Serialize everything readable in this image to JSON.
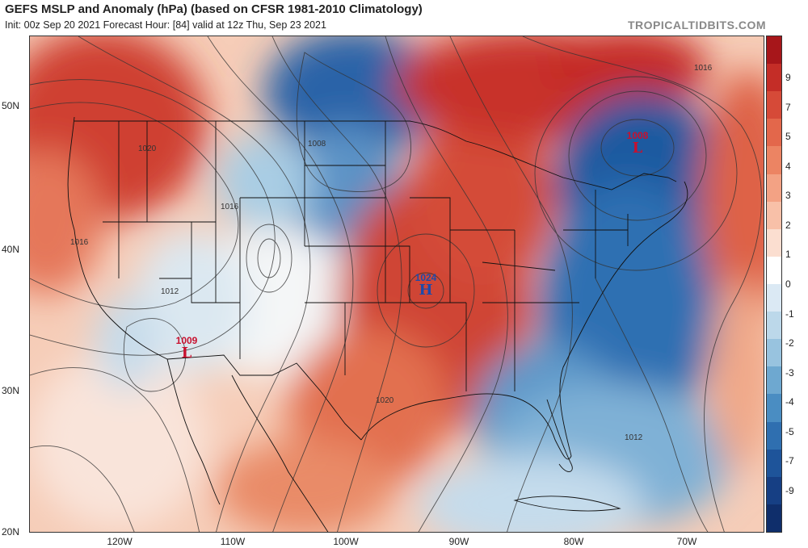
{
  "header": {
    "title": "GEFS MSLP and Anomaly (hPa) (based on CFSR 1981-2010 Climatology)",
    "subtitle": "Init: 00z Sep 20 2021   Forecast Hour: [84]   valid at 12z Thu, Sep 23 2021",
    "brand": "TROPICALTIDBITS.COM"
  },
  "axes": {
    "lat_labels": [
      "50N",
      "40N",
      "30N",
      "20N"
    ],
    "lon_labels": [
      "120W",
      "110W",
      "100W",
      "90W",
      "80W",
      "70W"
    ]
  },
  "colorbar": {
    "labels": [
      "9",
      "7",
      "5",
      "4",
      "3",
      "2",
      "1",
      "0",
      "-1",
      "-2",
      "-3",
      "-4",
      "-5",
      "-7",
      "-9"
    ],
    "colors": [
      "#a7161a",
      "#c42d27",
      "#d64a38",
      "#e3674b",
      "#ec8463",
      "#f3a284",
      "#f8c0a8",
      "#fbded0",
      "#ffffff",
      "#dbe9f4",
      "#bcd8ea",
      "#98c3df",
      "#6ea8d0",
      "#4a8dc2",
      "#2f6fb0",
      "#1e549a",
      "#163f84",
      "#0f2e6b"
    ]
  },
  "pressure_systems": [
    {
      "type": "L",
      "value": "1008",
      "color": "#c8102e"
    },
    {
      "type": "H",
      "value": "1024",
      "color": "#1f4aa8"
    },
    {
      "type": "L",
      "value": "1009",
      "color": "#c8102e"
    }
  ],
  "isobar_labels": [
    "1020",
    "1016",
    "1016",
    "1012",
    "1008",
    "1020",
    "1016",
    "1012"
  ]
}
